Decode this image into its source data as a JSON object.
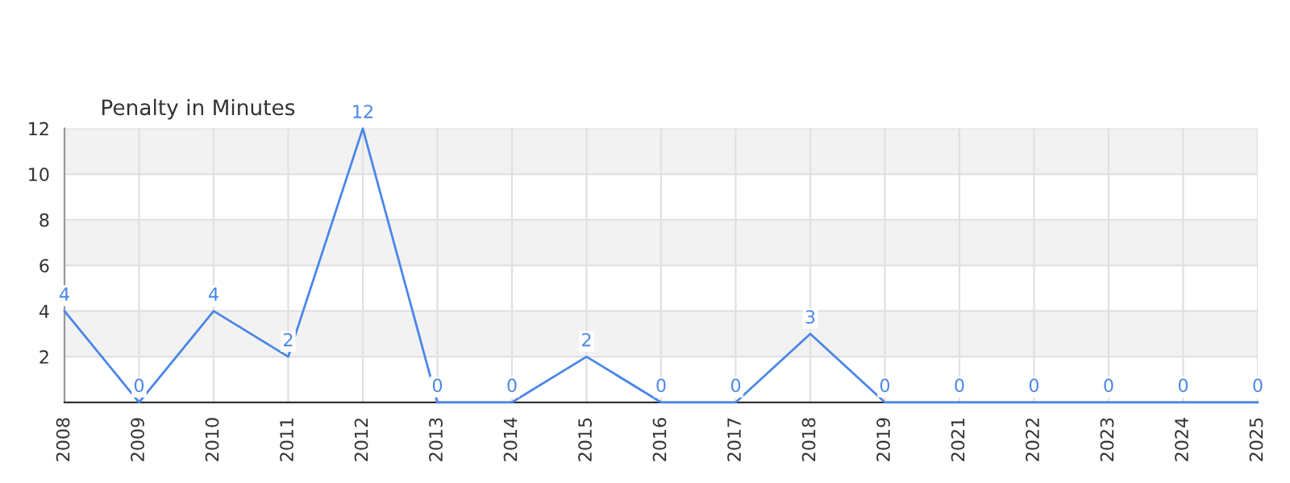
{
  "chart_data": {
    "type": "line",
    "title": "Penalty in Minutes",
    "categories": [
      "2008",
      "2009",
      "2010",
      "2011",
      "2012",
      "2013",
      "2014",
      "2015",
      "2016",
      "2017",
      "2018",
      "2019",
      "2021",
      "2022",
      "2023",
      "2024",
      "2025"
    ],
    "series": [
      {
        "color": "#4a86e8",
        "values": [
          4,
          0,
          4,
          2,
          12,
          0,
          0,
          2,
          0,
          0,
          3,
          0,
          0,
          0,
          0,
          0,
          0
        ]
      }
    ],
    "ylim": [
      0,
      12
    ],
    "yticks": [
      2,
      4,
      6,
      8,
      10,
      12
    ],
    "bands": [
      {
        "axis": "y",
        "from": 2,
        "to": 4,
        "color": "#f2f2f2"
      },
      {
        "axis": "y",
        "from": 6,
        "to": 8,
        "color": "#f2f2f2"
      },
      {
        "axis": "y",
        "from": 10,
        "to": 12,
        "color": "#f2f2f2"
      }
    ],
    "grid": true,
    "data_labels": true,
    "marker": "none",
    "line_style": "solid",
    "legend": false
  }
}
